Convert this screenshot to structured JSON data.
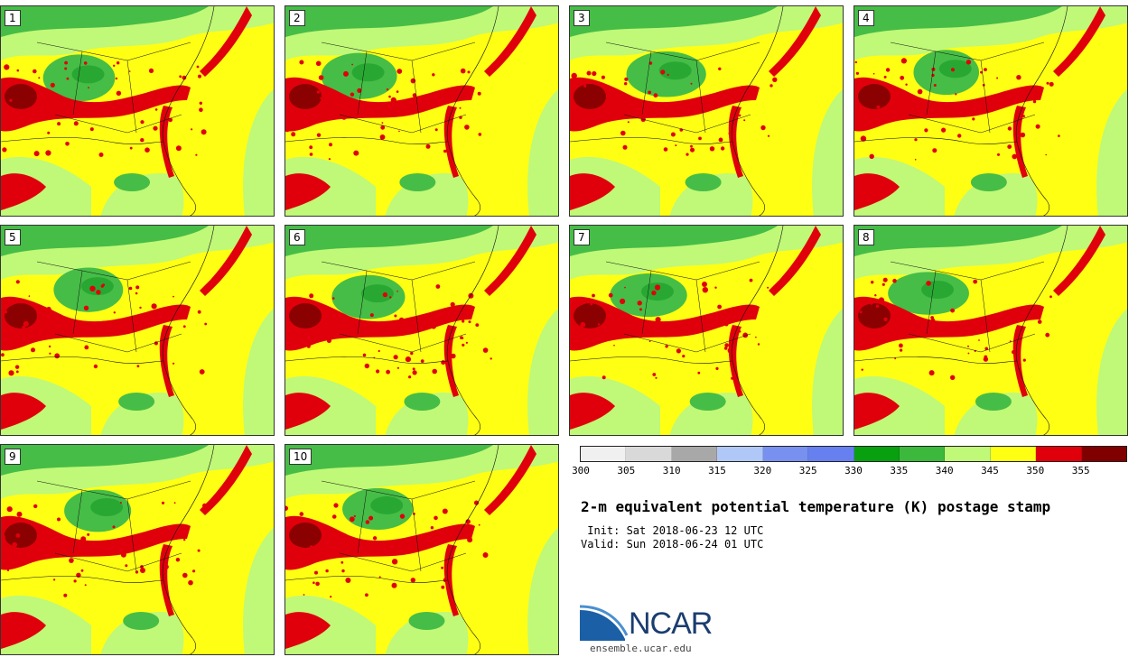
{
  "title": "2-m equivalent potential temperature (K) postage stamp",
  "init_label": " Init: Sat 2018-06-23 12 UTC",
  "valid_label": "Valid: Sun 2018-06-24 01 UTC",
  "logo_text": "NCAR",
  "website": "ensemble.ucar.edu",
  "members": [
    "1",
    "2",
    "3",
    "4",
    "5",
    "6",
    "7",
    "8",
    "9",
    "10"
  ],
  "colorbar": {
    "ticks": [
      "300",
      "305",
      "310",
      "315",
      "320",
      "325",
      "330",
      "335",
      "340",
      "345",
      "350",
      "355"
    ],
    "colors": [
      "#f0f0f0",
      "#d9d9d9",
      "#a8a8a8",
      "#b0c8f8",
      "#7890f0",
      "#6680f0",
      "#09a010",
      "#3cb83c",
      "#c0f878",
      "#ffff14",
      "#e0000c",
      "#800000"
    ]
  },
  "map_colors": {
    "dark_green": "#28a832",
    "mid_green": "#46bd46",
    "light_green": "#c0f878",
    "yellow": "#ffff14",
    "red": "#e0000c",
    "dark_red": "#8b0000"
  }
}
